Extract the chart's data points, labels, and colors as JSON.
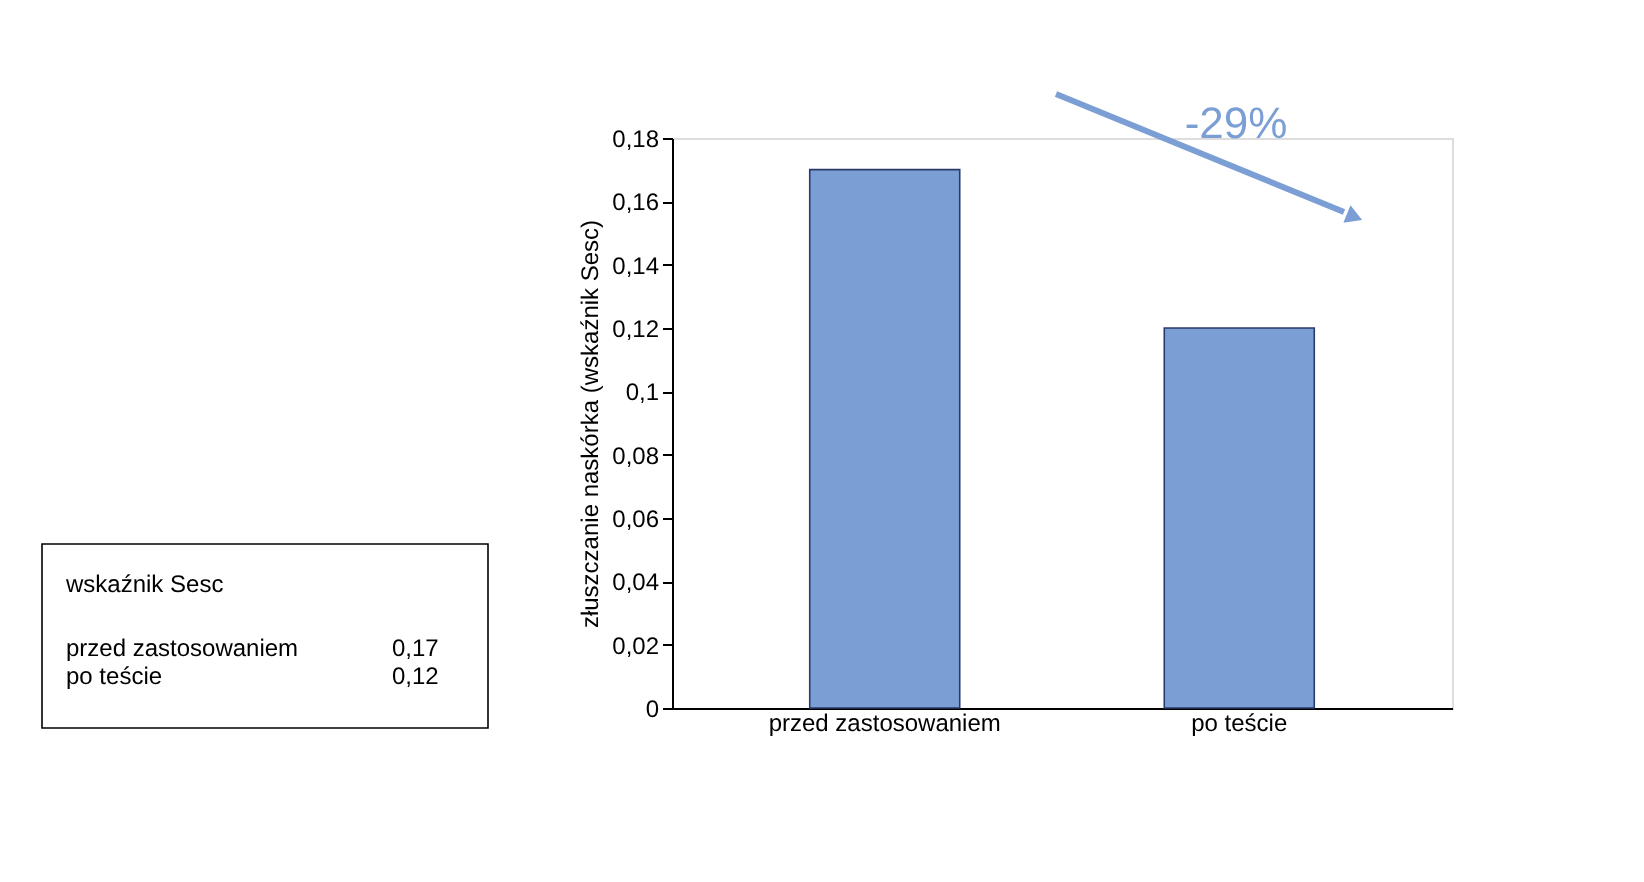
{
  "chart_data": {
    "type": "bar",
    "ylabel": "złuszczanie naskórka (wskaźnik Sesc)",
    "categories": [
      "przed zastosowaniem",
      "po teście"
    ],
    "values": [
      0.17,
      0.12
    ],
    "color": "#7b9fd4",
    "ylim": [
      0,
      0.18
    ],
    "yticks": [
      0,
      {
        "value": 0.02,
        "label": "0,02"
      },
      {
        "value": 0.04,
        "label": "0,04"
      },
      {
        "value": 0.06,
        "label": "0,06"
      },
      {
        "value": 0.08,
        "label": "0,08"
      },
      {
        "value": 0.1,
        "label": "0,1"
      },
      {
        "value": 0.12,
        "label": "0,12"
      },
      {
        "value": 0.14,
        "label": "0,14"
      },
      {
        "value": 0.16,
        "label": "0,16"
      },
      {
        "value": 0.18,
        "label": "0,18"
      }
    ],
    "annotations": [
      "-29%",
      "wskaźnik Sesc",
      "przed zastosowaniem",
      "0,17",
      "po teście",
      "0,12"
    ],
    "grid": false
  }
}
